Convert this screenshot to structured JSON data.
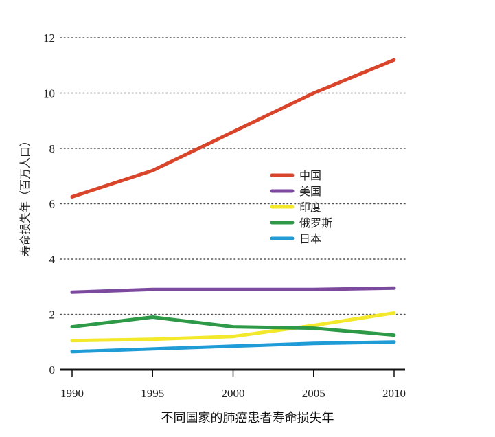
{
  "chart_data": {
    "type": "line",
    "title": "不同国家的肺癌患者寿命损失年",
    "xlabel": "",
    "ylabel": "寿命损失年（百万人口）",
    "x": [
      1990,
      1995,
      2000,
      2005,
      2010
    ],
    "x_tick_labels": [
      "1990",
      "1995",
      "2000",
      "2005",
      "2010"
    ],
    "y_ticks": [
      0,
      2,
      4,
      6,
      8,
      10,
      12
    ],
    "y_tick_labels": [
      "0",
      "2",
      "4",
      "6",
      "8",
      "10",
      "12"
    ],
    "ylim": [
      0,
      12
    ],
    "grid": "horizontal dotted",
    "legend_position": "right-center",
    "series": [
      {
        "name": "中国",
        "color": "#d9452b",
        "values": [
          6.25,
          7.2,
          8.6,
          10.0,
          11.2
        ]
      },
      {
        "name": "美国",
        "color": "#7b4a9e",
        "values": [
          2.8,
          2.9,
          2.9,
          2.9,
          2.95
        ]
      },
      {
        "name": "印度",
        "color": "#f3e82a",
        "values": [
          1.05,
          1.1,
          1.2,
          1.6,
          2.05
        ]
      },
      {
        "name": "俄罗斯",
        "color": "#2e9a48",
        "values": [
          1.55,
          1.9,
          1.55,
          1.5,
          1.25
        ]
      },
      {
        "name": "日本",
        "color": "#1f9bd6",
        "values": [
          0.65,
          0.75,
          0.85,
          0.95,
          1.0
        ]
      }
    ]
  }
}
